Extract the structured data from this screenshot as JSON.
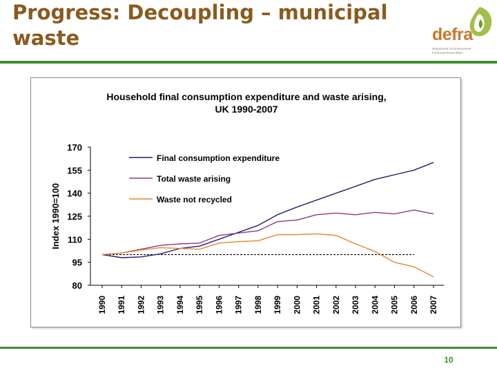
{
  "slide": {
    "title": "Progress: Decoupling – municipal waste",
    "page_number": "10",
    "logo": {
      "wordmark": "defra",
      "tagline": "Department for Environment Food and Rural Affairs"
    }
  },
  "colors": {
    "title": "#8B5A1E",
    "accent_rule": "#3E8E2E",
    "logo_text": "#C9782C"
  },
  "chart_data": {
    "type": "line",
    "title": "Household final consumption  expenditure  and waste arising,",
    "subtitle": "UK 1990-2007",
    "xlabel": "",
    "ylabel": "Index 1990=100",
    "ylim": [
      80,
      170
    ],
    "yticks": [
      80,
      95,
      110,
      125,
      140,
      155,
      170
    ],
    "grid": false,
    "legend_position": "top-left",
    "categories": [
      "1990",
      "1991",
      "1992",
      "1993",
      "1994",
      "1995",
      "1996",
      "1997",
      "1998",
      "1999",
      "2000",
      "2001",
      "2002",
      "2003",
      "2004",
      "2005",
      "2006",
      "2007"
    ],
    "series": [
      {
        "name": "Final consumption expenditure",
        "color": "#1F1F6B",
        "values": [
          100,
          98,
          98.5,
          100.5,
          104,
          105.5,
          110,
          114.5,
          119,
          126,
          131,
          135.5,
          140,
          144.5,
          149,
          152,
          155,
          160
        ]
      },
      {
        "name": "Total waste arising",
        "color": "#8B3A7E",
        "values": [
          100,
          101,
          103.5,
          106,
          107,
          107.5,
          112.5,
          114,
          115.5,
          121.5,
          122.5,
          126,
          127,
          126,
          127.5,
          126.5,
          129,
          126.5
        ]
      },
      {
        "name": "Waste not recycled",
        "color": "#E8842C",
        "values": [
          100,
          101,
          103,
          104.5,
          104,
          103.5,
          107.5,
          108.5,
          109,
          113,
          113,
          113.5,
          112.5,
          107,
          102,
          95,
          92,
          85.5
        ]
      }
    ],
    "reference_line": {
      "value": 100,
      "style": "dashed",
      "color": "#000000",
      "from": "1990",
      "to": "2006"
    }
  }
}
